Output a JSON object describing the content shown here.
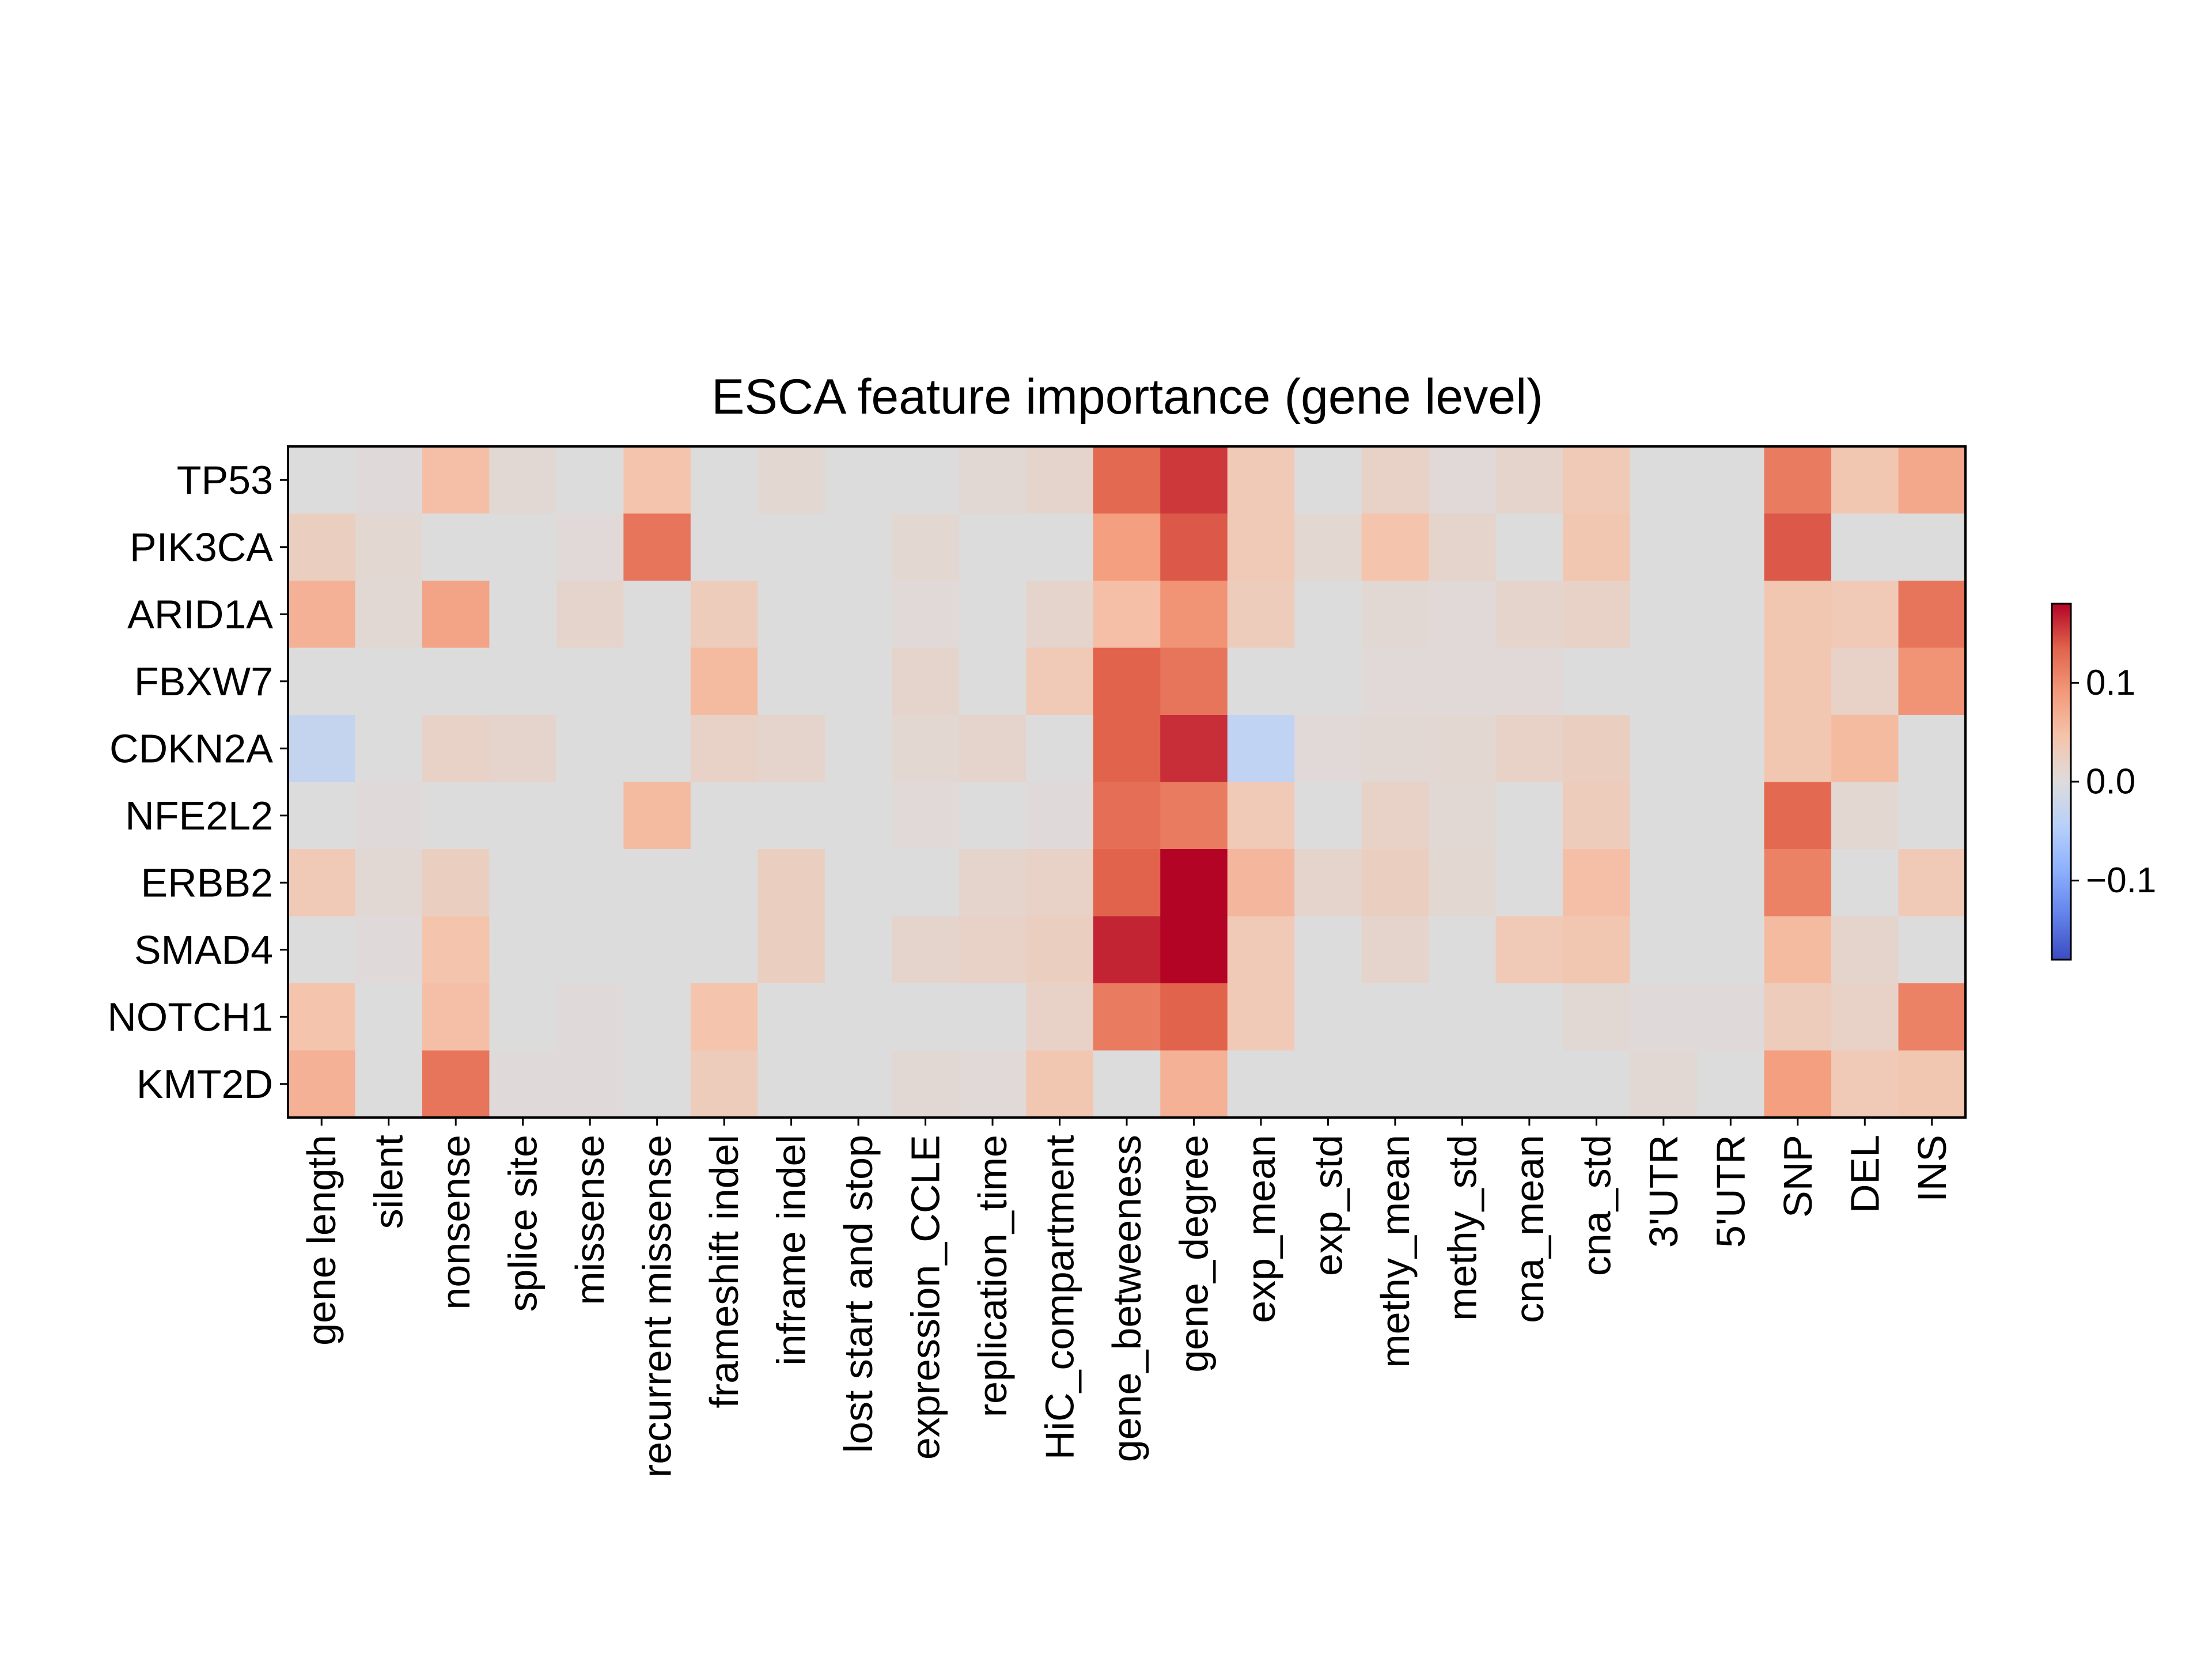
{
  "chart_data": {
    "type": "heatmap",
    "title": "ESCA feature importance (gene level)",
    "xlabel": "",
    "ylabel": "",
    "rows": [
      "TP53",
      "PIK3CA",
      "ARID1A",
      "FBXW7",
      "CDKN2A",
      "NFE2L2",
      "ERBB2",
      "SMAD4",
      "NOTCH1",
      "KMT2D"
    ],
    "columns": [
      "gene length",
      "silent",
      "nonsense",
      "splice site",
      "missense",
      "recurrent missense",
      "frameshift indel",
      "inframe indel",
      "lost start and stop",
      "expression_CCLE",
      "replication_time",
      "HiC_compartment",
      "gene_betweeness",
      "gene_degree",
      "exp_mean",
      "exp_std",
      "methy_mean",
      "methy_std",
      "cna_mean",
      "cna_std",
      "3'UTR",
      "5'UTR",
      "SNP",
      "DEL",
      "INS"
    ],
    "values": [
      [
        0.0,
        0.003,
        0.05,
        0.008,
        0.0,
        0.045,
        0.0,
        0.01,
        0.0,
        0.0,
        0.008,
        0.015,
        0.13,
        0.155,
        0.035,
        0.0,
        0.02,
        0.005,
        0.015,
        0.035,
        0.0,
        0.0,
        0.115,
        0.04,
        0.075
      ],
      [
        0.025,
        0.01,
        0.0,
        0.0,
        0.005,
        0.12,
        0.0,
        0.0,
        0.0,
        0.01,
        0.0,
        0.0,
        0.085,
        0.14,
        0.035,
        0.01,
        0.045,
        0.015,
        0.0,
        0.04,
        0.0,
        0.0,
        0.14,
        0.0,
        0.0
      ],
      [
        0.065,
        0.008,
        0.08,
        0.0,
        0.015,
        0.0,
        0.03,
        0.0,
        0.0,
        0.005,
        0.0,
        0.015,
        0.05,
        0.095,
        0.03,
        0.0,
        0.008,
        0.005,
        0.015,
        0.02,
        0.0,
        0.0,
        0.04,
        0.035,
        0.12
      ],
      [
        0.0,
        0.0,
        0.0,
        0.0,
        0.0,
        0.0,
        0.055,
        0.0,
        0.0,
        0.015,
        0.0,
        0.035,
        0.135,
        0.12,
        0.0,
        0.0,
        0.005,
        0.005,
        0.005,
        0.0,
        0.0,
        0.0,
        0.04,
        0.02,
        0.095
      ],
      [
        -0.03,
        0.0,
        0.02,
        0.015,
        0.0,
        0.0,
        0.02,
        0.015,
        0.0,
        0.01,
        0.015,
        0.0,
        0.135,
        0.16,
        -0.035,
        0.005,
        0.008,
        0.01,
        0.02,
        0.025,
        0.0,
        0.0,
        0.04,
        0.055,
        0.0
      ],
      [
        0.0,
        0.003,
        0.0,
        0.0,
        0.0,
        0.055,
        0.0,
        0.0,
        0.0,
        0.005,
        0.0,
        0.003,
        0.125,
        0.115,
        0.035,
        0.0,
        0.02,
        0.008,
        0.0,
        0.03,
        0.0,
        0.0,
        0.13,
        0.01,
        0.0
      ],
      [
        0.035,
        0.008,
        0.025,
        0.0,
        0.0,
        0.0,
        0.0,
        0.025,
        0.0,
        0.0,
        0.015,
        0.02,
        0.135,
        0.185,
        0.06,
        0.015,
        0.025,
        0.01,
        0.0,
        0.05,
        0.0,
        0.0,
        0.11,
        0.0,
        0.035
      ],
      [
        0.0,
        0.003,
        0.045,
        0.0,
        0.0,
        0.0,
        0.0,
        0.025,
        0.0,
        0.015,
        0.02,
        0.025,
        0.165,
        0.18,
        0.035,
        0.0,
        0.015,
        0.0,
        0.035,
        0.04,
        0.0,
        0.0,
        0.055,
        0.015,
        0.0
      ],
      [
        0.045,
        0.0,
        0.05,
        0.0,
        0.003,
        0.0,
        0.045,
        0.0,
        0.0,
        0.0,
        0.0,
        0.02,
        0.115,
        0.135,
        0.035,
        0.0,
        0.0,
        0.0,
        0.0,
        0.008,
        0.003,
        0.003,
        0.03,
        0.02,
        0.11
      ],
      [
        0.065,
        0.0,
        0.12,
        0.003,
        0.003,
        0.0,
        0.03,
        0.0,
        0.0,
        0.008,
        0.005,
        0.04,
        0.0,
        0.065,
        0.0,
        0.0,
        0.0,
        0.0,
        0.0,
        0.0,
        0.008,
        0.0,
        0.085,
        0.035,
        0.04
      ]
    ],
    "colormap": "coolwarm",
    "vmin": -0.18,
    "vmax": 0.18,
    "colorbar_ticks": [
      {
        "value": 0.1,
        "label": "0.1"
      },
      {
        "value": 0.0,
        "label": "0.0"
      },
      {
        "value": -0.1,
        "label": "−0.1"
      }
    ],
    "grid": false,
    "legend": "colorbar at right"
  }
}
